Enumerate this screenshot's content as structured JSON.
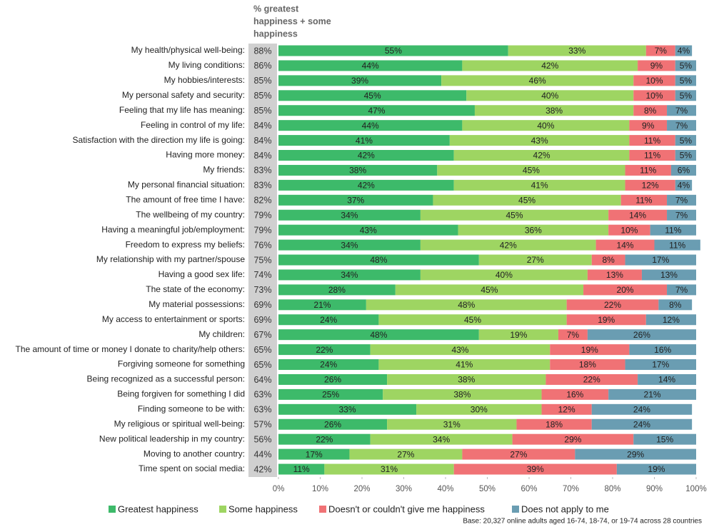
{
  "chart_data": {
    "type": "stacked-bar-horizontal",
    "categories": [
      "My health/physical well-being:",
      "My living conditions:",
      "My hobbies/interests:",
      "My personal safety and security:",
      "Feeling that my life has meaning:",
      "Feeling in control of my life:",
      "Satisfaction with the direction my life is going:",
      "Having more money:",
      "My friends:",
      "My personal financial situation:",
      "The amount of free time I have:",
      "The wellbeing of my country:",
      "Having a meaningful job/employment:",
      "Freedom to express my beliefs:",
      "My relationship with my partner/spouse",
      "Having a good sex life:",
      "The state of the economy:",
      "My material possessions:",
      "My access to entertainment or sports:",
      "My children:",
      "The amount of time or money I donate to charity/help others:",
      "Forgiving someone for something",
      "Being recognized as a successful person:",
      "Being forgiven for something I did",
      "Finding someone to be with:",
      "My religious or spiritual well-being:",
      "New political leadership in my country:",
      "Moving to another country:",
      "Time spent on social media:"
    ],
    "series": [
      {
        "name": "Greatest happiness",
        "color": "#3dba6a",
        "values": [
          55,
          44,
          39,
          45,
          47,
          44,
          41,
          42,
          38,
          42,
          37,
          34,
          43,
          34,
          48,
          34,
          28,
          21,
          24,
          48,
          22,
          24,
          26,
          25,
          33,
          26,
          22,
          17,
          11
        ],
        "value_labels": [
          "55%",
          "44%",
          "39%",
          "45%",
          "47%",
          "44%",
          "41%",
          "42%",
          "38%",
          "42%",
          "37%",
          "34%",
          "43%",
          "34%",
          "48%",
          "34%",
          "28%",
          "21%",
          "24%",
          "48%",
          "22%",
          "24%",
          "26%",
          "25%",
          "33%",
          "26%",
          "22%",
          "17%",
          "11%"
        ]
      },
      {
        "name": "Some happiness",
        "color": "#9ed562",
        "values": [
          33,
          42,
          46,
          40,
          38,
          40,
          43,
          42,
          45,
          41,
          45,
          45,
          36,
          42,
          27,
          40,
          45,
          48,
          45,
          19,
          43,
          41,
          38,
          38,
          30,
          31,
          34,
          27,
          31
        ],
        "value_labels": [
          "33%",
          "42%",
          "46%",
          "40%",
          "38%",
          "40%",
          "43%",
          "42%",
          "45%",
          "41%",
          "45%",
          "45%",
          "36%",
          "42%",
          "27%",
          "40%",
          "45%",
          "48%",
          "45%",
          "19%",
          "43%",
          "41%",
          "38%",
          "38%",
          "30%",
          "31%",
          "34%",
          "27%",
          "31%"
        ]
      },
      {
        "name": "Doesn't or couldn't give me happiness",
        "color": "#f07275",
        "values": [
          7,
          9,
          10,
          10,
          8,
          9,
          11,
          11,
          11,
          12,
          11,
          14,
          10,
          14,
          8,
          13,
          20,
          22,
          19,
          7,
          19,
          18,
          22,
          16,
          12,
          18,
          29,
          27,
          39
        ],
        "value_labels": [
          "7%",
          "9%",
          "10%",
          "10%",
          "8%",
          "9%",
          "11%",
          "11%",
          "11%",
          "12%",
          "11%",
          "14%",
          "10%",
          "14%",
          "8%",
          "13%",
          "20%",
          "22%",
          "19%",
          "7%",
          "19%",
          "18%",
          "22%",
          "16%",
          "12%",
          "18%",
          "29%",
          "27%",
          "39%"
        ]
      },
      {
        "name": "Does not apply to me",
        "color": "#6a9db2",
        "values": [
          4,
          5,
          5,
          5,
          7,
          7,
          5,
          5,
          6,
          4,
          7,
          7,
          11,
          11,
          17,
          13,
          7,
          8,
          12,
          26,
          16,
          17,
          14,
          21,
          24,
          24,
          15,
          29,
          19
        ],
        "value_labels": [
          "4%",
          "5%",
          "5%",
          "5%",
          "7%",
          "7%",
          "5%",
          "5%",
          "6%",
          "4%",
          "7%",
          "7%",
          "11%",
          "11%",
          "17%",
          "13%",
          "7%",
          "8%",
          "12%",
          "26%",
          "16%",
          "17%",
          "14%",
          "21%",
          "24%",
          "24%",
          "15%",
          "29%",
          "19%"
        ]
      }
    ],
    "totals": {
      "title_lines": [
        "% greatest",
        "happiness + some",
        "happiness"
      ],
      "values": [
        88,
        86,
        85,
        85,
        85,
        84,
        84,
        84,
        83,
        83,
        82,
        79,
        79,
        76,
        75,
        74,
        73,
        69,
        69,
        67,
        65,
        65,
        64,
        63,
        63,
        57,
        56,
        44,
        42
      ],
      "value_labels": [
        "88%",
        "86%",
        "85%",
        "85%",
        "85%",
        "84%",
        "84%",
        "84%",
        "83%",
        "83%",
        "82%",
        "79%",
        "79%",
        "76%",
        "75%",
        "74%",
        "73%",
        "69%",
        "69%",
        "67%",
        "65%",
        "65%",
        "64%",
        "63%",
        "63%",
        "57%",
        "56%",
        "44%",
        "42%"
      ]
    },
    "xlim": [
      0,
      100
    ],
    "xticks": [
      {
        "value": 0,
        "label": "0%"
      },
      {
        "value": 10,
        "label": "10%"
      },
      {
        "value": 20,
        "label": "20%"
      },
      {
        "value": 30,
        "label": "30%"
      },
      {
        "value": 40,
        "label": "40%"
      },
      {
        "value": 50,
        "label": "50%"
      },
      {
        "value": 60,
        "label": "60%"
      },
      {
        "value": 70,
        "label": "70%"
      },
      {
        "value": 80,
        "label": "80%"
      },
      {
        "value": 90,
        "label": "90%"
      },
      {
        "value": 100,
        "label": "100%"
      }
    ],
    "footnote": "Base: 20,327 online adults aged 16-74, 18-74, or 19-74 across 28 countries"
  }
}
